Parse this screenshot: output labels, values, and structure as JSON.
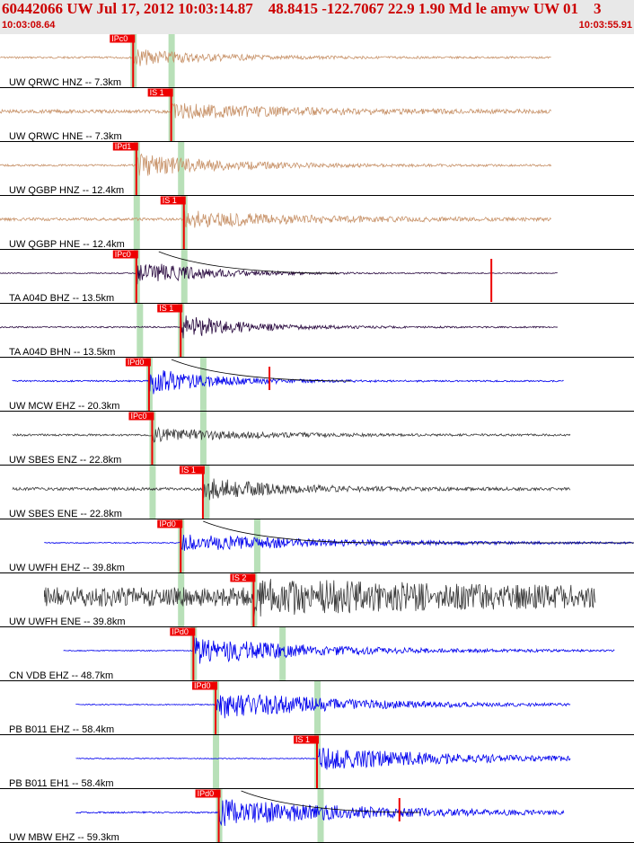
{
  "header": {
    "title": "60442066 UW Jul 17, 2012 10:03:14.87    48.8415 -122.7067 22.9 1.90 Md le amyw UW 01    3",
    "time_start": "10:03:08.64",
    "time_end": "10:03:55.91"
  },
  "colors": {
    "header_bg": "#e8e8e8",
    "header_text": "#cc0000",
    "pick": "#ee0000",
    "window": "#b8e0b8",
    "tan": "#c8936a",
    "purple": "#2a0a40",
    "blue": "#0000ee",
    "dark": "#3a3a3a"
  },
  "panels": [
    {
      "label": "UW QRWC HNZ -- 7.3km",
      "color": "tan",
      "start": 0.0,
      "end": 0.87,
      "onset": 0.21,
      "amp": 0.35,
      "noise": 0.04,
      "decay": 0.12,
      "pick_label": "IPc0",
      "pick_x": 0.21,
      "win": [
        0.21,
        0.27
      ],
      "theo_line": false,
      "extra_pick": false
    },
    {
      "label": "UW QRWC HNE -- 7.3km",
      "color": "tan",
      "start": 0.0,
      "end": 0.87,
      "onset": 0.27,
      "amp": 0.3,
      "noise": 0.07,
      "decay": 0.2,
      "pick_label": "IS 1",
      "pick_x": 0.27,
      "win": [
        0.27
      ],
      "theo_line": false,
      "extra_pick": false
    },
    {
      "label": "UW QGBP HNZ -- 12.4km",
      "color": "tan",
      "start": 0.0,
      "end": 0.87,
      "onset": 0.215,
      "amp": 0.45,
      "noise": 0.04,
      "decay": 0.14,
      "pick_label": "IPd1",
      "pick_x": 0.215,
      "win": [
        0.215,
        0.285
      ],
      "theo_line": false,
      "extra_pick": false
    },
    {
      "label": "UW QGBP HNE -- 12.4km",
      "color": "tan",
      "start": 0.0,
      "end": 0.87,
      "onset": 0.29,
      "amp": 0.35,
      "noise": 0.06,
      "decay": 0.18,
      "pick_label": "IS 1",
      "pick_x": 0.29,
      "win": [
        0.215,
        0.29
      ],
      "theo_line": false,
      "extra_pick": false
    },
    {
      "label": "TA A04D BHZ -- 13.5km",
      "color": "purple",
      "start": 0.0,
      "end": 0.88,
      "onset": 0.215,
      "amp": 0.55,
      "noise": 0.02,
      "decay": 0.1,
      "pick_label": "IPc0",
      "pick_x": 0.215,
      "win": [
        0.215,
        0.29
      ],
      "theo_line": true,
      "extra_pick": true
    },
    {
      "label": "TA A04D BHN -- 13.5km",
      "color": "purple",
      "start": 0.0,
      "end": 0.88,
      "onset": 0.285,
      "amp": 0.5,
      "noise": 0.03,
      "decay": 0.1,
      "pick_label": "IS 1",
      "pick_x": 0.285,
      "win": [
        0.22,
        0.285
      ],
      "theo_line": false,
      "extra_pick": false
    },
    {
      "label": "UW MCW EHZ -- 20.3km",
      "color": "blue",
      "start": 0.02,
      "end": 0.89,
      "onset": 0.235,
      "amp": 0.55,
      "noise": 0.03,
      "decay": 0.1,
      "pick_label": "IPd0",
      "pick_x": 0.235,
      "win": [
        0.235,
        0.32
      ],
      "theo_line": true,
      "extra_pick": true
    },
    {
      "label": "UW SBES ENZ -- 22.8km",
      "color": "dark",
      "start": 0.02,
      "end": 0.9,
      "onset": 0.24,
      "amp": 0.3,
      "noise": 0.04,
      "decay": 0.14,
      "pick_label": "IPc0",
      "pick_x": 0.24,
      "win": [
        0.24,
        0.32
      ],
      "theo_line": false,
      "extra_pick": false
    },
    {
      "label": "UW SBES ENE -- 22.8km",
      "color": "dark",
      "start": 0.02,
      "end": 0.9,
      "onset": 0.32,
      "amp": 0.45,
      "noise": 0.06,
      "decay": 0.12,
      "pick_label": "IS 1",
      "pick_x": 0.32,
      "win": [
        0.24,
        0.325
      ],
      "theo_line": false,
      "extra_pick": false
    },
    {
      "label": "UW UWFH EHZ -- 39.8km",
      "color": "blue",
      "start": 0.07,
      "end": 1.0,
      "onset": 0.285,
      "amp": 0.35,
      "noise": 0.02,
      "decay": 0.25,
      "pick_label": "IPd0",
      "pick_x": 0.285,
      "win": [
        0.285,
        0.405
      ],
      "theo_line": true,
      "extra_pick": false
    },
    {
      "label": "UW UWFH ENE -- 39.8km",
      "color": "dark",
      "start": 0.07,
      "end": 0.94,
      "onset": 0.4,
      "amp": 0.45,
      "noise": 0.4,
      "decay": 0.3,
      "pick_label": "IS 2",
      "pick_x": 0.4,
      "win": [
        0.285,
        0.4
      ],
      "theo_line": false,
      "extra_pick": false
    },
    {
      "label": "CN VDB EHZ -- 48.7km",
      "color": "blue",
      "start": 0.1,
      "end": 0.97,
      "onset": 0.305,
      "amp": 0.55,
      "noise": 0.02,
      "decay": 0.2,
      "pick_label": "IPd0",
      "pick_x": 0.305,
      "win": [
        0.305,
        0.445
      ],
      "theo_line": false,
      "extra_pick": false
    },
    {
      "label": "PB B011 EHZ -- 58.4km",
      "color": "blue",
      "start": 0.12,
      "end": 0.9,
      "onset": 0.34,
      "amp": 0.6,
      "noise": 0.02,
      "decay": 0.2,
      "pick_label": "IPd0",
      "pick_x": 0.34,
      "win": [
        0.34,
        0.5
      ],
      "theo_line": false,
      "extra_pick": false
    },
    {
      "label": "PB B011 EH1 -- 58.4km",
      "color": "blue",
      "start": 0.12,
      "end": 0.9,
      "onset": 0.5,
      "amp": 0.5,
      "noise": 0.02,
      "decay": 0.22,
      "pick_label": "IS 1",
      "pick_x": 0.5,
      "win": [
        0.34,
        0.5
      ],
      "theo_line": false,
      "extra_pick": false
    },
    {
      "label": "UW MBW EHZ -- 59.3km",
      "color": "blue",
      "start": 0.12,
      "end": 0.89,
      "onset": 0.345,
      "amp": 0.55,
      "noise": 0.03,
      "decay": 0.25,
      "pick_label": "IPd0",
      "pick_x": 0.345,
      "win": [
        0.345,
        0.505
      ],
      "theo_line": true,
      "extra_pick": true
    }
  ]
}
